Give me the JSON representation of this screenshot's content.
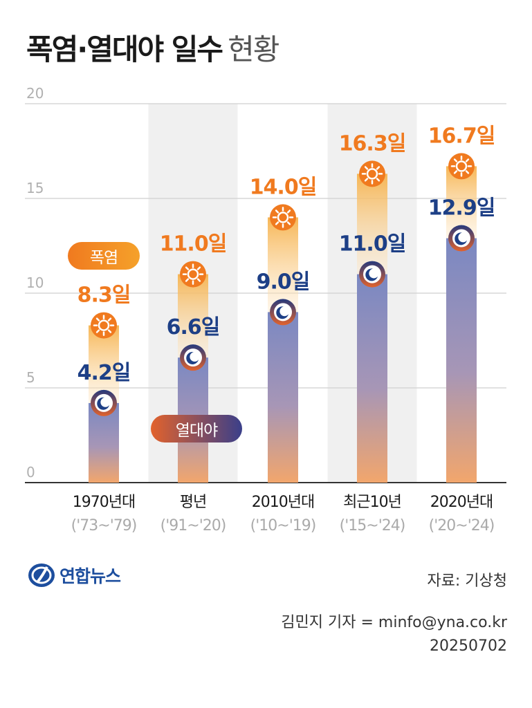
{
  "title": {
    "bold": "폭염·열대야 일수",
    "light": "현황"
  },
  "legend": {
    "heatwave": "폭염",
    "tropical_night": "열대야"
  },
  "chart_data": {
    "type": "bar",
    "title": "폭염·열대야 일수 현황",
    "categories": [
      "1970년대",
      "평년",
      "2010년대",
      "최근10년",
      "2020년대"
    ],
    "category_ranges": [
      "('73~'79)",
      "('91~'20)",
      "('10~'19)",
      "('15~'24)",
      "('20~'24)"
    ],
    "series": [
      {
        "name": "폭염",
        "values": [
          8.3,
          11.0,
          14.0,
          16.3,
          16.7
        ],
        "labels": [
          "8.3일",
          "11.0일",
          "14.0일",
          "16.3일",
          "16.7일"
        ],
        "color": "#f07a1f"
      },
      {
        "name": "열대야",
        "values": [
          4.2,
          6.6,
          9.0,
          11.0,
          12.9
        ],
        "labels": [
          "4.2일",
          "6.6일",
          "9.0일",
          "11.0일",
          "12.9일"
        ],
        "color": "#1d3f86"
      }
    ],
    "ylim": [
      0,
      20
    ],
    "yticks": [
      "0",
      "5",
      "10",
      "15",
      "20"
    ],
    "grid": true,
    "shaded_columns": [
      1,
      3
    ]
  },
  "source": "자료: 기상청",
  "credit": {
    "reporter": "김민지 기자 = minfo@yna.co.kr",
    "date": "20250702"
  },
  "logo": {
    "text": "연합뉴스"
  },
  "colors": {
    "heat": "#f07a1f",
    "night": "#1d3f86",
    "bar_top": "#7f8bc0",
    "bar_bottom": "#f4a76a"
  }
}
